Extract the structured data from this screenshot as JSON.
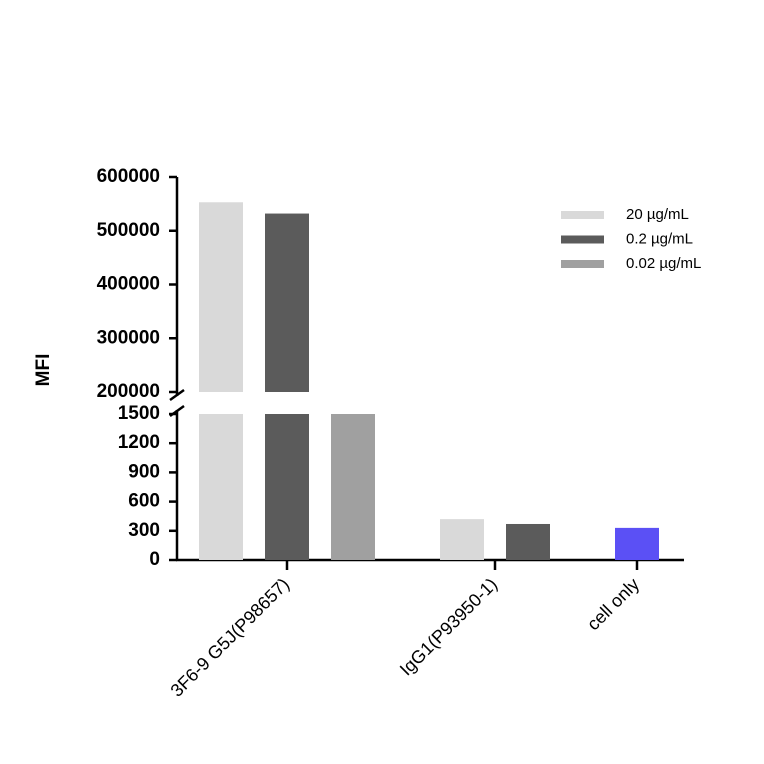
{
  "chart_data": {
    "type": "bar",
    "y_label": "MFI",
    "categories": [
      "3F6-9 G5J(P98657)",
      "IgG1(P93950-1)",
      "cell only"
    ],
    "series": [
      {
        "name": "20 µg/mL",
        "color": "#d9d9d9",
        "values": [
          553000,
          420,
          null
        ]
      },
      {
        "name": "0.2 µg/mL",
        "color": "#5b5b5b",
        "values": [
          532000,
          370,
          null
        ]
      },
      {
        "name": "0.02 µg/mL",
        "color": "#a0a0a0",
        "values": [
          1500,
          null,
          null
        ]
      },
      {
        "color": "#5b50f5",
        "values": [
          null,
          null,
          330
        ]
      }
    ],
    "y_segments": [
      {
        "ylim": [
          0,
          1500
        ],
        "yticks": [
          0,
          300,
          600,
          900,
          1200,
          1500
        ]
      },
      {
        "ylim": [
          200000,
          600000
        ],
        "yticks": [
          200000,
          300000,
          400000,
          500000,
          600000
        ]
      }
    ],
    "legend": "upper right"
  }
}
